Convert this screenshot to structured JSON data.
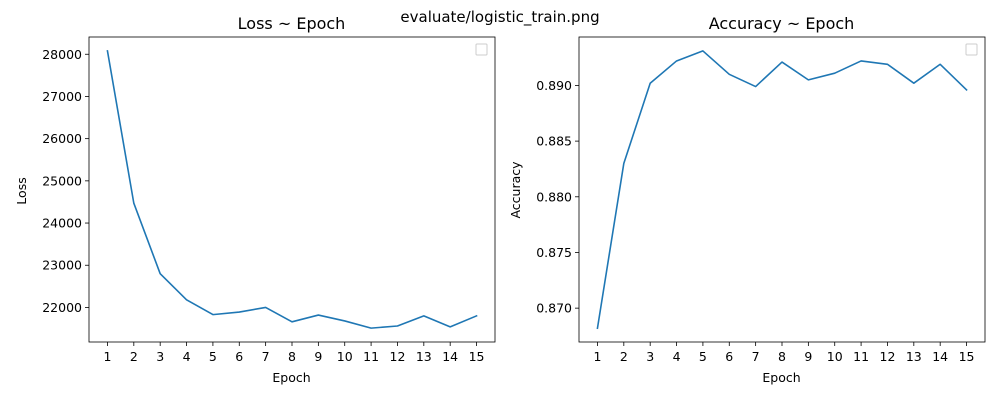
{
  "figure": {
    "suptitle": "evaluate/logistic_train.png"
  },
  "chart_data": [
    {
      "type": "line",
      "title": "Loss ~ Epoch",
      "xlabel": "Epoch",
      "ylabel": "Loss",
      "x": [
        1,
        2,
        3,
        4,
        5,
        6,
        7,
        8,
        9,
        10,
        11,
        12,
        13,
        14,
        15
      ],
      "series": [
        {
          "values": [
            28080,
            24470,
            22800,
            22180,
            21830,
            21890,
            22000,
            21660,
            21820,
            21680,
            21510,
            21560,
            21800,
            21540,
            21800
          ]
        }
      ],
      "xticks": [
        1,
        2,
        3,
        4,
        5,
        6,
        7,
        8,
        9,
        10,
        11,
        12,
        13,
        14,
        15
      ],
      "yticks": [
        22000,
        23000,
        24000,
        25000,
        26000,
        27000,
        28000
      ],
      "xlim": [
        0.3,
        15.7
      ],
      "ylim": [
        21181,
        28409
      ],
      "grid": false,
      "legend": "top-right (empty)",
      "color": "#1f77b4"
    },
    {
      "type": "line",
      "title": "Accuracy ~ Epoch",
      "xlabel": "Epoch",
      "ylabel": "Accuracy",
      "x": [
        1,
        2,
        3,
        4,
        5,
        6,
        7,
        8,
        9,
        10,
        11,
        12,
        13,
        14,
        15
      ],
      "series": [
        {
          "values": [
            0.8682,
            0.883,
            0.8902,
            0.8922,
            0.8931,
            0.891,
            0.8899,
            0.8921,
            0.8905,
            0.8911,
            0.8922,
            0.8919,
            0.8902,
            0.8919,
            0.8896
          ]
        }
      ],
      "xticks": [
        1,
        2,
        3,
        4,
        5,
        6,
        7,
        8,
        9,
        10,
        11,
        12,
        13,
        14,
        15
      ],
      "yticks": [
        0.87,
        0.875,
        0.88,
        0.885,
        0.89
      ],
      "ytick_labels": [
        "0.870",
        "0.875",
        "0.880",
        "0.885",
        "0.890"
      ],
      "xlim": [
        0.3,
        15.7
      ],
      "ylim": [
        0.86696,
        0.89435
      ],
      "grid": false,
      "legend": "top-right (empty)",
      "color": "#1f77b4"
    }
  ]
}
